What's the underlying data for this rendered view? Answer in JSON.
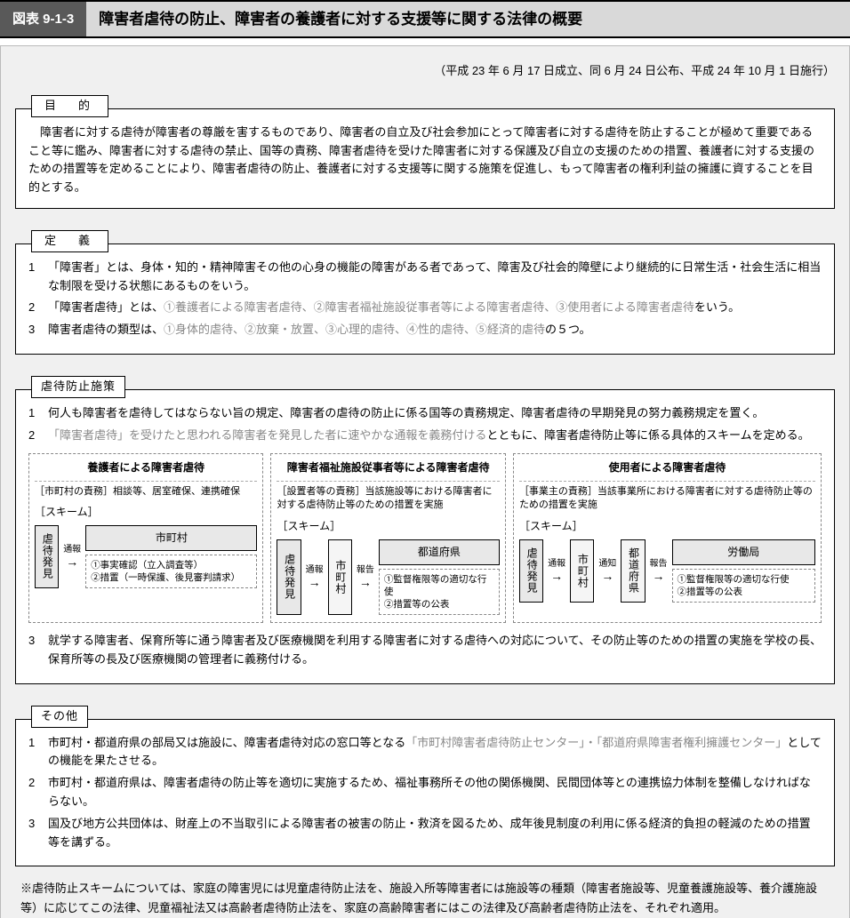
{
  "title": {
    "badge": "図表 9-1-3",
    "text": "障害者虐待の防止、障害者の養護者に対する支援等に関する法律の概要"
  },
  "date_line": "（平成 23 年 6 月 17 日成立、同 6 月 24 日公布、平成 24 年 10 月 1 日施行）",
  "purpose": {
    "label": "目　的",
    "text": "障害者に対する虐待が障害者の尊厳を害するものであり、障害者の自立及び社会参加にとって障害者に対する虐待を防止することが極めて重要であること等に鑑み、障害者に対する虐待の禁止、国等の責務、障害者虐待を受けた障害者に対する保護及び自立の支援のための措置、養護者に対する支援のための措置等を定めることにより、障害者虐待の防止、養護者に対する支援等に関する施策を促進し、もって障害者の権利利益の擁護に資することを目的とする。"
  },
  "definition": {
    "label": "定　義",
    "items": [
      {
        "n": "1",
        "pre": "「障害者」とは、身体・知的・精神障害その他の心身の機能の障害がある者であって、障害及び社会的障壁により継続的に日常生活・社会生活に相当な制限を受ける状態にあるものをいう。"
      },
      {
        "n": "2",
        "pre": "「障害者虐待」とは、",
        "gray": "①養護者による障害者虐待、②障害者福祉施設従事者等による障害者虐待、③使用者による障害者虐待",
        "post": "をいう。"
      },
      {
        "n": "3",
        "pre": "障害者虐待の類型は、",
        "gray": "①身体的虐待、②放棄・放置、③心理的虐待、④性的虐待、⑤経済的虐待",
        "post": "の５つ。"
      }
    ]
  },
  "measures": {
    "label": "虐待防止施策",
    "item1": "何人も障害者を虐待してはならない旨の規定、障害者の虐待の防止に係る国等の責務規定、障害者虐待の早期発見の努力義務規定を置く。",
    "item2_gray": "「障害者虐待」を受けたと思われる障害者を発見した者に速やかな通報を義務付ける",
    "item2_post": "とともに、障害者虐待防止等に係る具体的スキームを定める。",
    "item3": "就学する障害者、保育所等に通う障害者及び医療機関を利用する障害者に対する虐待への対応について、その防止等のための措置の実施を学校の長、保育所等の長及び医療機関の管理者に義務付ける。",
    "schemes": {
      "a": {
        "head": "養護者による障害者虐待",
        "duty": "［市町村の責務］相談等、居室確保、連携確保",
        "sk": "［スキーム］",
        "discover": "虐待発見",
        "arrow1": "通報",
        "node1": "市町村",
        "detail": "①事実確認（立入調査等）\n②措置（一時保護、後見審判請求）"
      },
      "b": {
        "head": "障害者福祉施設従事者等による障害者虐待",
        "duty": "［設置者等の責務］当該施設等における障害者に対する虐待防止等のための措置を実施",
        "sk": "［スキーム］",
        "discover": "虐待発見",
        "arrow1": "通報",
        "node1": "市町村",
        "arrow2": "報告",
        "node2": "都道府県",
        "detail": "①監督権限等の適切な行使\n②措置等の公表"
      },
      "c": {
        "head": "使用者による障害者虐待",
        "duty": "［事業主の責務］当該事業所における障害者に対する虐待防止等のための措置を実施",
        "sk": "［スキーム］",
        "discover": "虐待発見",
        "arrow1": "通報",
        "node1": "市町村",
        "arrow2": "通知",
        "node2": "都道府県",
        "arrow3": "報告",
        "node3": "労働局",
        "detail": "①監督権限等の適切な行使\n②措置等の公表"
      }
    }
  },
  "other": {
    "label": "その他",
    "items": [
      {
        "n": "1",
        "pre": "市町村・都道府県の部局又は施設に、障害者虐待対応の窓口等となる",
        "gray": "「市町村障害者虐待防止センター」・「都道府県障害者権利擁護センター」",
        "post": "としての機能を果たさせる。"
      },
      {
        "n": "2",
        "pre": "市町村・都道府県は、障害者虐待の防止等を適切に実施するため、福祉事務所その他の関係機関、民間団体等との連携協力体制を整備しなければならない。"
      },
      {
        "n": "3",
        "pre": "国及び地方公共団体は、財産上の不当取引による障害者の被害の防止・救済を図るため、成年後見制度の利用に係る経済的負担の軽減のための措置等を講ずる。"
      }
    ]
  },
  "footnote": "※虐待防止スキームについては、家庭の障害児には児童虐待防止法を、施設入所等障害者には施設等の種類（障害者施設等、児童養護施設等、養介護施設等）に応じてこの法律、児童福祉法又は高齢者虐待防止法を、家庭の高齢障害者にはこの法律及び高齢者虐待防止法を、それぞれ適用。"
}
